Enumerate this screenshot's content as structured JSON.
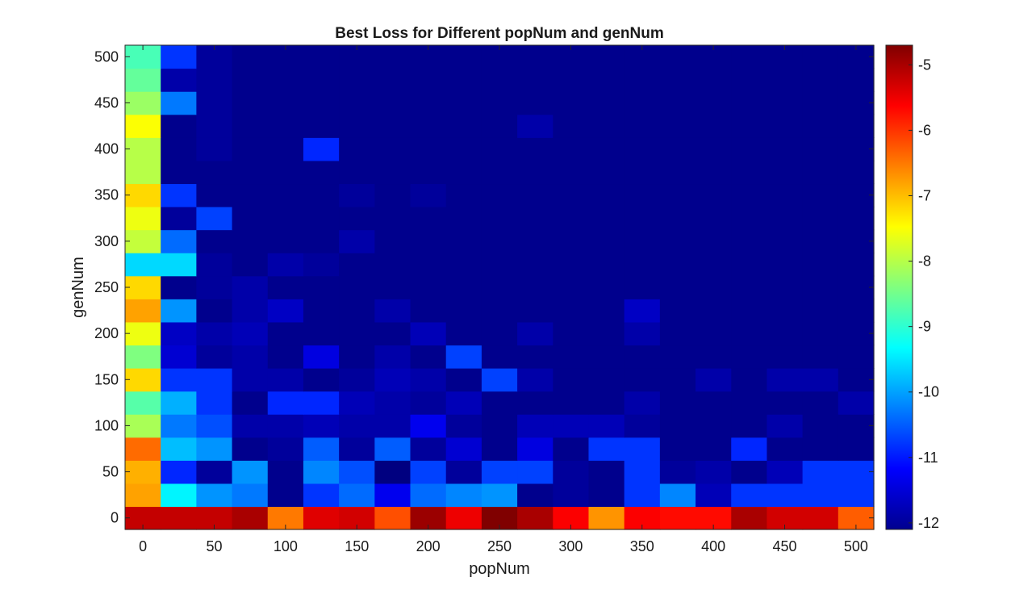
{
  "chart_data": {
    "type": "heatmap",
    "title": "Best Loss for Different popNum and genNum",
    "xlabel": "popNum",
    "ylabel": "genNum",
    "x": [
      0,
      25,
      50,
      75,
      100,
      125,
      150,
      175,
      200,
      225,
      250,
      275,
      300,
      325,
      350,
      375,
      400,
      425,
      450,
      475,
      500
    ],
    "y": [
      0,
      25,
      50,
      75,
      100,
      125,
      150,
      175,
      200,
      225,
      250,
      275,
      300,
      325,
      350,
      375,
      400,
      425,
      450,
      475,
      500
    ],
    "xticks": [
      "0",
      "50",
      "100",
      "150",
      "200",
      "250",
      "300",
      "350",
      "400",
      "450",
      "500"
    ],
    "yticks": [
      "0",
      "50",
      "100",
      "150",
      "200",
      "250",
      "300",
      "350",
      "400",
      "450",
      "500"
    ],
    "colorbar": {
      "colormap": "jet",
      "clim": [
        -12.1,
        -4.7
      ],
      "ticks": [
        "-5",
        "-6",
        "-7",
        "-8",
        "-9",
        "-10",
        "-11",
        "-12"
      ]
    },
    "z": [
      [
        -5.2,
        -5.2,
        -5.2,
        -5.0,
        -6.5,
        -5.4,
        -5.3,
        -6.2,
        -4.9,
        -5.5,
        -4.7,
        -5.0,
        -5.6,
        -6.7,
        -5.6,
        -5.7,
        -5.7,
        -5.0,
        -5.3,
        -5.3,
        -6.3
      ],
      [
        -6.8,
        -9.4,
        -10.1,
        -10.3,
        -12.0,
        -10.8,
        -10.4,
        -11.3,
        -10.4,
        -10.2,
        -10.1,
        -12.0,
        -11.9,
        -12.0,
        -10.8,
        -10.2,
        -11.7,
        -10.8,
        -10.8,
        -10.8,
        -10.8
      ],
      [
        -6.9,
        -10.9,
        -11.9,
        -10.1,
        -12.0,
        -10.2,
        -10.6,
        -12.1,
        -10.7,
        -11.9,
        -10.7,
        -10.7,
        -11.9,
        -12.0,
        -10.8,
        -11.9,
        -11.8,
        -12.0,
        -11.7,
        -10.8,
        -10.8
      ],
      [
        -6.4,
        -9.8,
        -10.1,
        -12.0,
        -11.9,
        -10.5,
        -11.9,
        -10.5,
        -11.9,
        -11.5,
        -12.0,
        -11.4,
        -12.0,
        -10.8,
        -10.8,
        -12.0,
        -12.0,
        -10.9,
        -12.0,
        -12.0,
        -12.0
      ],
      [
        -8.1,
        -10.3,
        -10.6,
        -11.8,
        -11.8,
        -11.7,
        -11.8,
        -11.8,
        -11.3,
        -11.9,
        -12.0,
        -11.7,
        -11.7,
        -11.7,
        -11.9,
        -12.0,
        -12.0,
        -12.0,
        -11.8,
        -12.0,
        -12.0
      ],
      [
        -8.7,
        -9.9,
        -10.8,
        -12.0,
        -10.9,
        -10.9,
        -11.7,
        -11.8,
        -11.9,
        -11.7,
        -12.0,
        -12.0,
        -12.0,
        -12.0,
        -11.8,
        -12.0,
        -12.0,
        -12.0,
        -12.0,
        -12.0,
        -11.8
      ],
      [
        -7.2,
        -10.8,
        -10.8,
        -11.8,
        -11.8,
        -12.0,
        -11.9,
        -11.7,
        -11.8,
        -12.0,
        -10.7,
        -11.8,
        -12.0,
        -12.0,
        -12.0,
        -12.0,
        -11.8,
        -12.0,
        -11.8,
        -11.8,
        -12.0
      ],
      [
        -8.4,
        -11.5,
        -11.9,
        -11.8,
        -12.0,
        -11.4,
        -12.0,
        -11.8,
        -12.0,
        -10.7,
        -12.0,
        -12.0,
        -12.0,
        -12.0,
        -12.0,
        -12.0,
        -12.0,
        -12.0,
        -12.0,
        -12.0,
        -12.0
      ],
      [
        -7.6,
        -11.6,
        -11.8,
        -11.7,
        -12.0,
        -12.0,
        -12.0,
        -12.0,
        -11.7,
        -12.0,
        -12.0,
        -11.8,
        -12.0,
        -12.0,
        -11.8,
        -12.0,
        -12.0,
        -12.0,
        -12.0,
        -12.0,
        -12.0
      ],
      [
        -6.8,
        -10.1,
        -12.0,
        -11.8,
        -11.6,
        -12.0,
        -12.0,
        -11.8,
        -12.0,
        -12.0,
        -12.0,
        -12.0,
        -12.0,
        -12.0,
        -11.6,
        -12.0,
        -12.0,
        -12.0,
        -12.0,
        -12.0,
        -12.0
      ],
      [
        -7.2,
        -12.0,
        -11.9,
        -11.8,
        -12.0,
        -12.0,
        -12.0,
        -12.0,
        -12.0,
        -12.0,
        -12.0,
        -12.0,
        -12.0,
        -12.0,
        -12.0,
        -12.0,
        -12.0,
        -12.0,
        -12.0,
        -12.0,
        -12.0
      ],
      [
        -9.6,
        -9.6,
        -11.9,
        -12.0,
        -11.8,
        -11.9,
        -12.0,
        -12.0,
        -12.0,
        -12.0,
        -12.0,
        -12.0,
        -12.0,
        -12.0,
        -12.0,
        -12.0,
        -12.0,
        -12.0,
        -12.0,
        -12.0,
        -12.0
      ],
      [
        -7.9,
        -10.4,
        -12.0,
        -12.0,
        -12.0,
        -12.0,
        -11.8,
        -12.0,
        -12.0,
        -12.0,
        -12.0,
        -12.0,
        -12.0,
        -12.0,
        -12.0,
        -12.0,
        -12.0,
        -12.0,
        -12.0,
        -12.0,
        -12.0
      ],
      [
        -7.6,
        -11.9,
        -10.7,
        -12.0,
        -12.0,
        -12.0,
        -12.0,
        -12.0,
        -12.0,
        -12.0,
        -12.0,
        -12.0,
        -12.0,
        -12.0,
        -12.0,
        -12.0,
        -12.0,
        -12.0,
        -12.0,
        -12.0,
        -12.0
      ],
      [
        -7.2,
        -10.8,
        -12.0,
        -12.0,
        -12.0,
        -12.0,
        -11.9,
        -12.0,
        -11.9,
        -12.0,
        -12.0,
        -12.0,
        -12.0,
        -12.0,
        -12.0,
        -12.0,
        -12.0,
        -12.0,
        -12.0,
        -12.0,
        -12.0
      ],
      [
        -8.0,
        -12.0,
        -12.0,
        -12.0,
        -12.0,
        -12.0,
        -12.0,
        -12.0,
        -12.0,
        -12.0,
        -12.0,
        -12.0,
        -12.0,
        -12.0,
        -12.0,
        -12.0,
        -12.0,
        -12.0,
        -12.0,
        -12.0,
        -12.0
      ],
      [
        -8.0,
        -12.0,
        -11.9,
        -12.0,
        -12.0,
        -10.9,
        -12.0,
        -12.0,
        -12.0,
        -12.0,
        -12.0,
        -12.0,
        -12.0,
        -12.0,
        -12.0,
        -12.0,
        -12.0,
        -12.0,
        -12.0,
        -12.0,
        -12.0
      ],
      [
        -7.5,
        -12.0,
        -11.9,
        -12.0,
        -12.0,
        -12.0,
        -12.0,
        -12.0,
        -12.0,
        -12.0,
        -12.0,
        -11.8,
        -12.0,
        -12.0,
        -12.0,
        -12.0,
        -12.0,
        -12.0,
        -12.0,
        -12.0,
        -12.0
      ],
      [
        -8.2,
        -10.3,
        -11.9,
        -12.0,
        -12.0,
        -12.0,
        -12.0,
        -12.0,
        -12.0,
        -12.0,
        -12.0,
        -12.0,
        -12.0,
        -12.0,
        -12.0,
        -12.0,
        -12.0,
        -12.0,
        -12.0,
        -12.0,
        -12.0
      ],
      [
        -8.6,
        -11.8,
        -11.9,
        -12.0,
        -12.0,
        -12.0,
        -12.0,
        -12.0,
        -12.0,
        -12.0,
        -12.0,
        -12.0,
        -12.0,
        -12.0,
        -12.0,
        -12.0,
        -12.0,
        -12.0,
        -12.0,
        -12.0,
        -12.0
      ],
      [
        -8.8,
        -10.8,
        -11.9,
        -12.0,
        -12.0,
        -12.0,
        -12.0,
        -12.0,
        -12.0,
        -12.0,
        -12.0,
        -12.0,
        -12.0,
        -12.0,
        -12.0,
        -12.0,
        -12.0,
        -12.0,
        -12.0,
        -12.0,
        -12.0
      ]
    ]
  }
}
